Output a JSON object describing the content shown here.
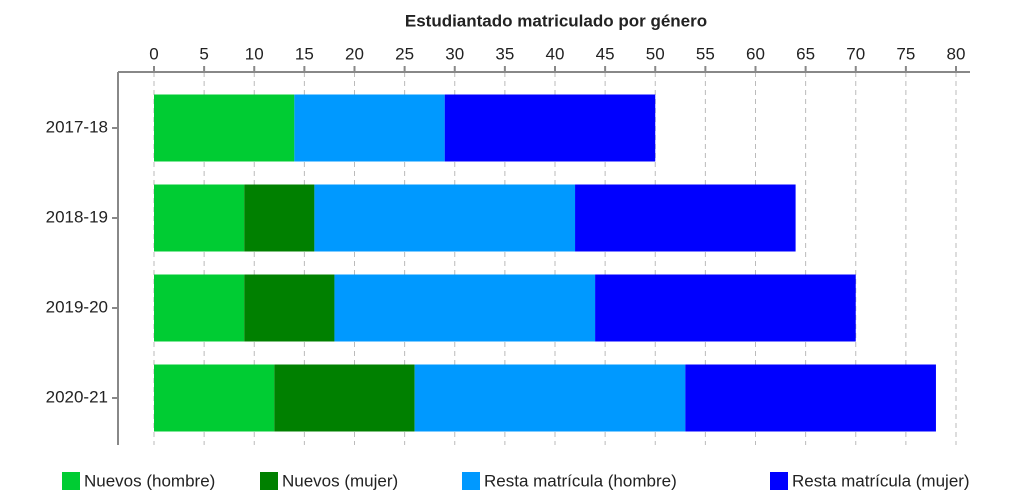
{
  "chart_data": {
    "type": "stacked_bar",
    "orientation": "horizontal",
    "title": "Estudiantado matriculado por género",
    "categories": [
      "2017-18",
      "2018-19",
      "2019-20",
      "2020-21"
    ],
    "series": [
      {
        "name": "Nuevos (hombre)",
        "color": "#00cc33",
        "values": [
          14,
          9,
          9,
          12
        ]
      },
      {
        "name": "Nuevos (mujer)",
        "color": "#008000",
        "values": [
          0,
          7,
          9,
          14
        ]
      },
      {
        "name": "Resta matrícula (hombre)",
        "color": "#0099ff",
        "values": [
          15,
          26,
          26,
          27
        ]
      },
      {
        "name": "Resta matrícula (mujer)",
        "color": "#0000ff",
        "values": [
          21,
          22,
          26,
          25
        ]
      }
    ],
    "xlim": [
      0,
      80
    ],
    "xticks": [
      0,
      5,
      10,
      15,
      20,
      25,
      30,
      35,
      40,
      45,
      50,
      55,
      60,
      65,
      70,
      75,
      80
    ],
    "grid": true,
    "legend": "bottom"
  }
}
